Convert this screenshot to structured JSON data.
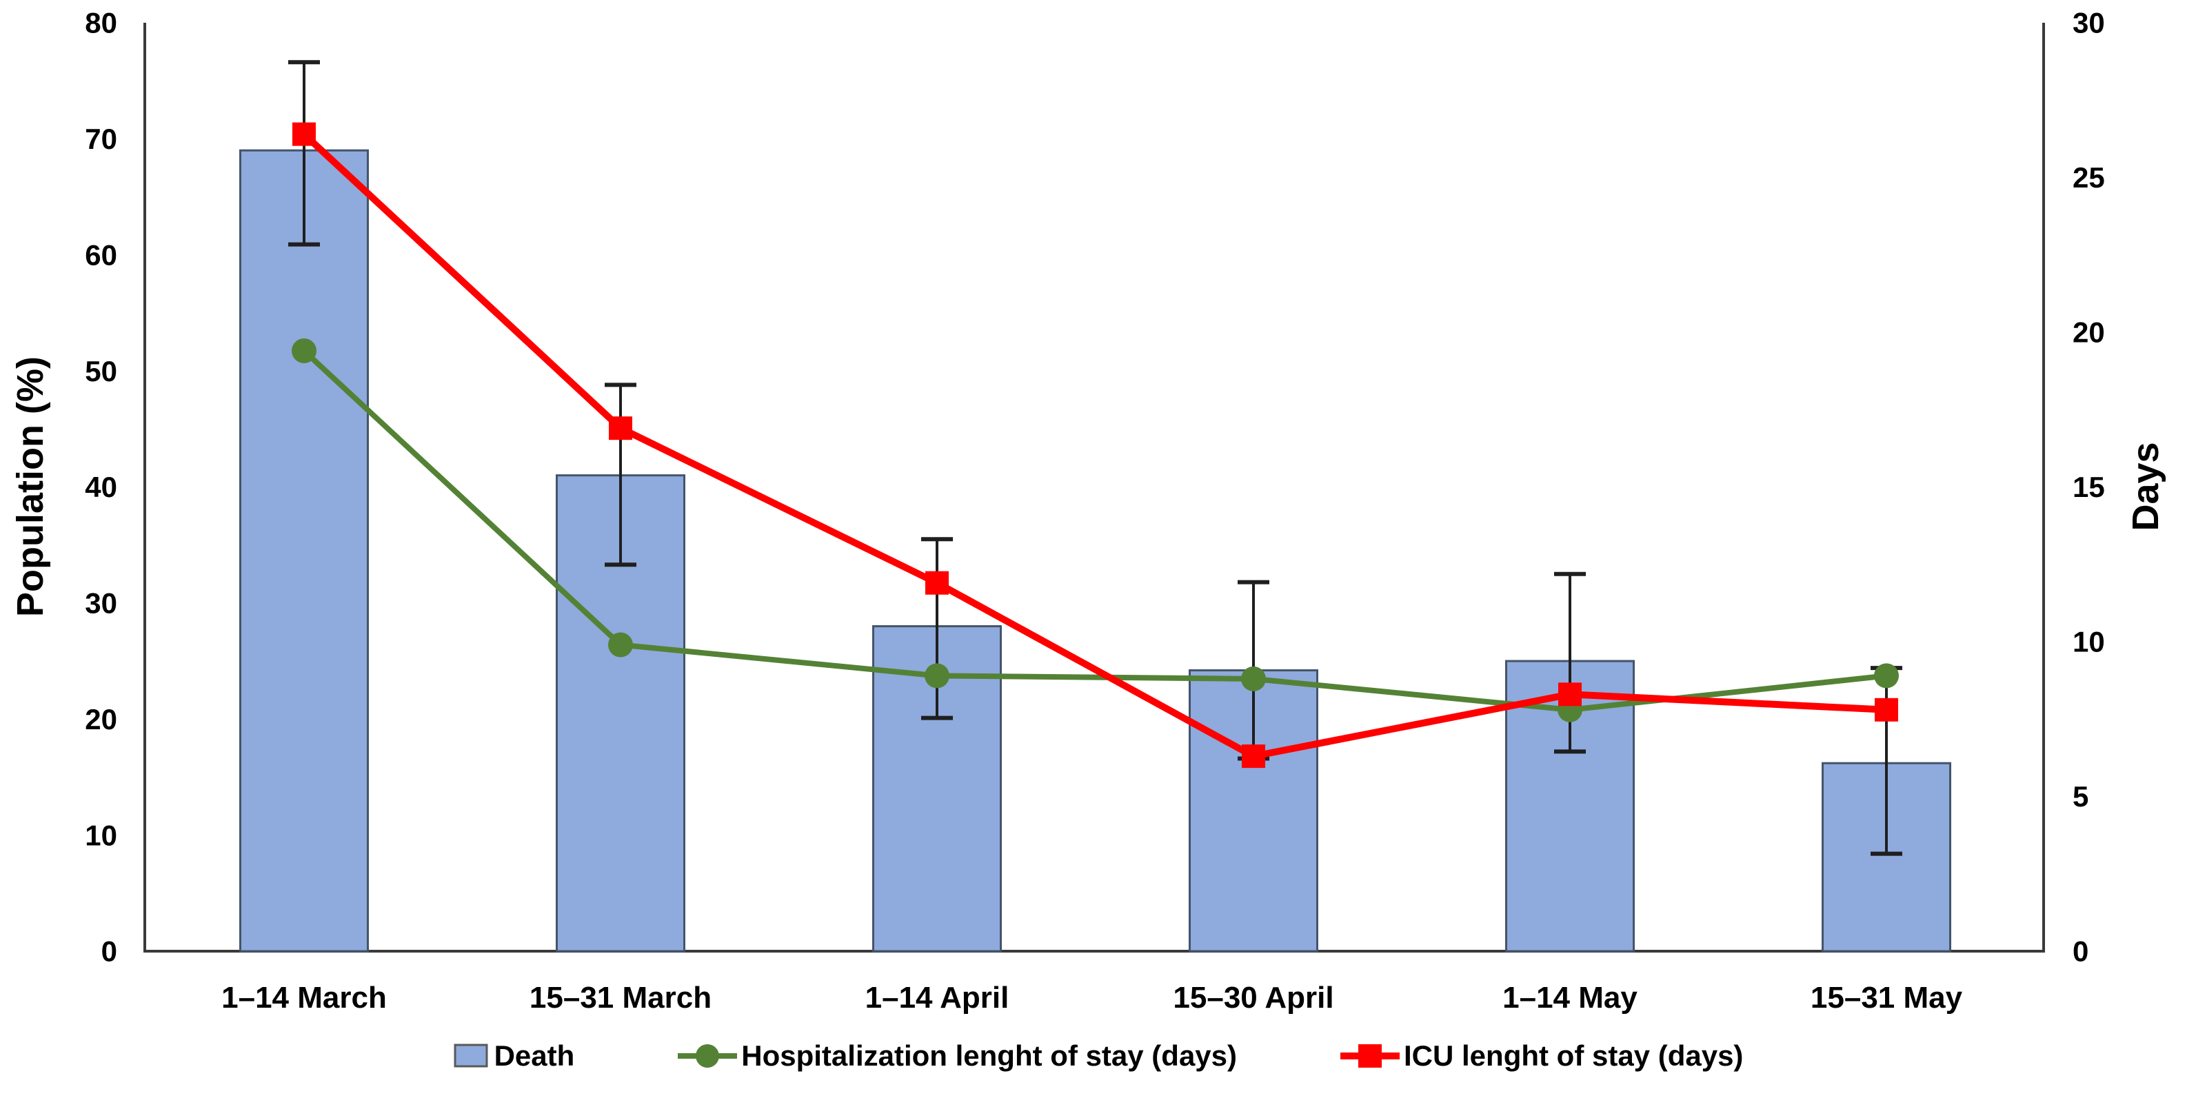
{
  "figure": {
    "background_color": "#FFFFFF",
    "axis_line_color": "#3A3A3A",
    "error_bar_color": "#1F1F1F",
    "text_color": "#000000"
  },
  "chart_data": {
    "type": "bar",
    "subtype": "combo-bar-line-dual-axis",
    "title": "",
    "grid": "off",
    "legend_position": "bottom",
    "categories": [
      "1–14 March",
      "15–31 March",
      "1–14 April",
      "15–30 April",
      "1–14 May",
      "15–31 May"
    ],
    "series": [
      {
        "name": "Death",
        "type": "bar",
        "axis": "left",
        "values": [
          69,
          41,
          28,
          24.2,
          25,
          16.2
        ],
        "error_up": [
          7.6,
          7.8,
          7.5,
          7.6,
          7.5,
          8.2
        ],
        "error_down": [
          8.1,
          7.7,
          7.9,
          7.6,
          7.8,
          7.8
        ],
        "color": "#8FAADC",
        "border_color": "#44546A"
      },
      {
        "name": "Hospitalization lenght of stay (days)",
        "type": "line",
        "axis": "right",
        "marker": "circle",
        "values": [
          19.4,
          9.9,
          8.9,
          8.8,
          7.8,
          8.9
        ],
        "color": "#548235"
      },
      {
        "name": "ICU lenght of stay (days)",
        "type": "line",
        "axis": "right",
        "marker": "square",
        "values": [
          26.4,
          16.9,
          11.9,
          6.3,
          8.3,
          7.8
        ],
        "color": "#FF0000"
      }
    ],
    "left_axis": {
      "label": "Population (%)",
      "min": 0,
      "max": 80,
      "ticks": [
        0,
        10,
        20,
        30,
        40,
        50,
        60,
        70,
        80
      ]
    },
    "right_axis": {
      "label": "Days",
      "min": 0,
      "max": 30,
      "ticks": [
        0,
        5,
        10,
        15,
        20,
        25,
        30
      ]
    }
  }
}
